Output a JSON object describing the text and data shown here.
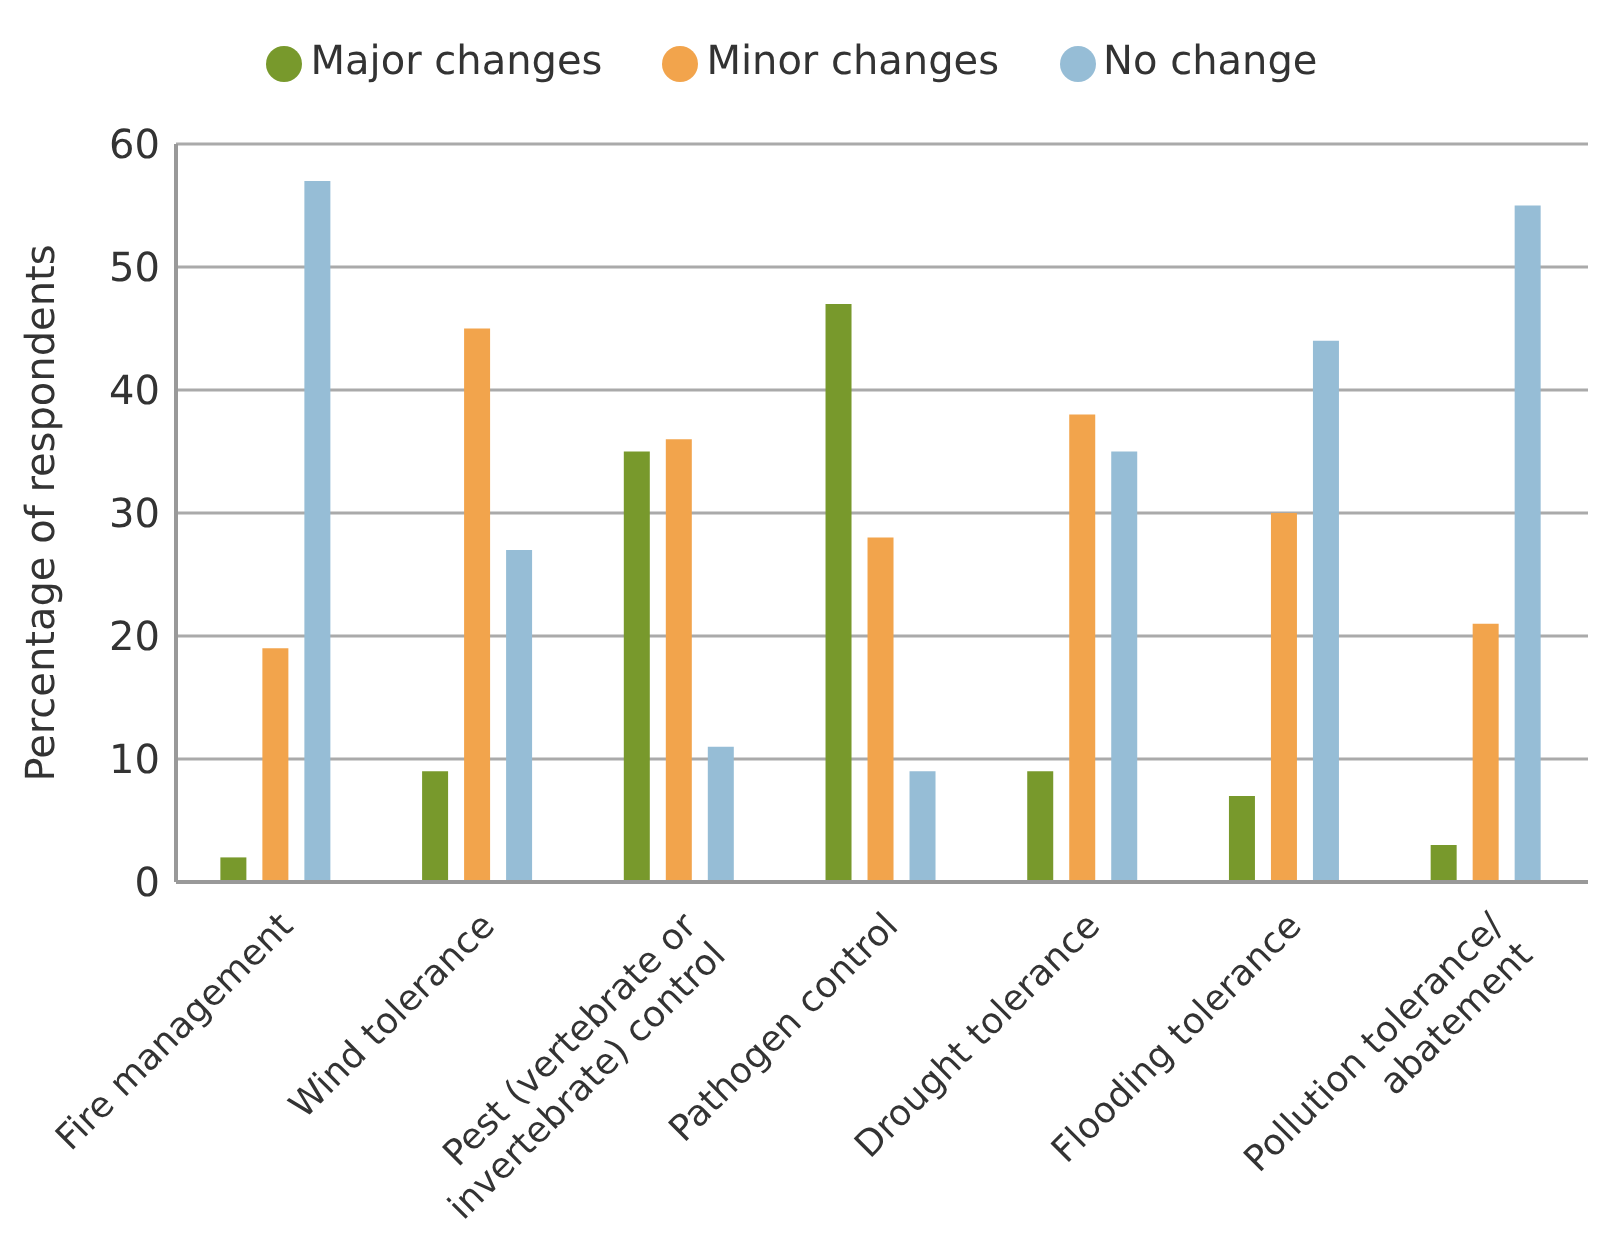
{
  "chart_data": {
    "type": "bar",
    "ylabel": "Percentage of respondents",
    "categories": [
      "Fire management",
      "Wind tolerance",
      "Pest (vertebrate or invertebrate) control",
      "Pathogen control",
      "Drought tolerance",
      "Flooding tolerance",
      "Pollution tolerance/ abatement"
    ],
    "series": [
      {
        "name": "Major changes",
        "color": "#78992c",
        "values": [
          2,
          9,
          35,
          47,
          9,
          7,
          3
        ]
      },
      {
        "name": "Minor changes",
        "color": "#f2a44c",
        "values": [
          19,
          45,
          36,
          28,
          38,
          30,
          21
        ]
      },
      {
        "name": "No change",
        "color": "#96bdd6",
        "values": [
          57,
          27,
          11,
          9,
          35,
          44,
          55
        ]
      }
    ],
    "ylim": [
      0,
      60
    ],
    "yticks": [
      0,
      10,
      20,
      30,
      40,
      50,
      60
    ],
    "grid": "y",
    "legend": "top"
  }
}
